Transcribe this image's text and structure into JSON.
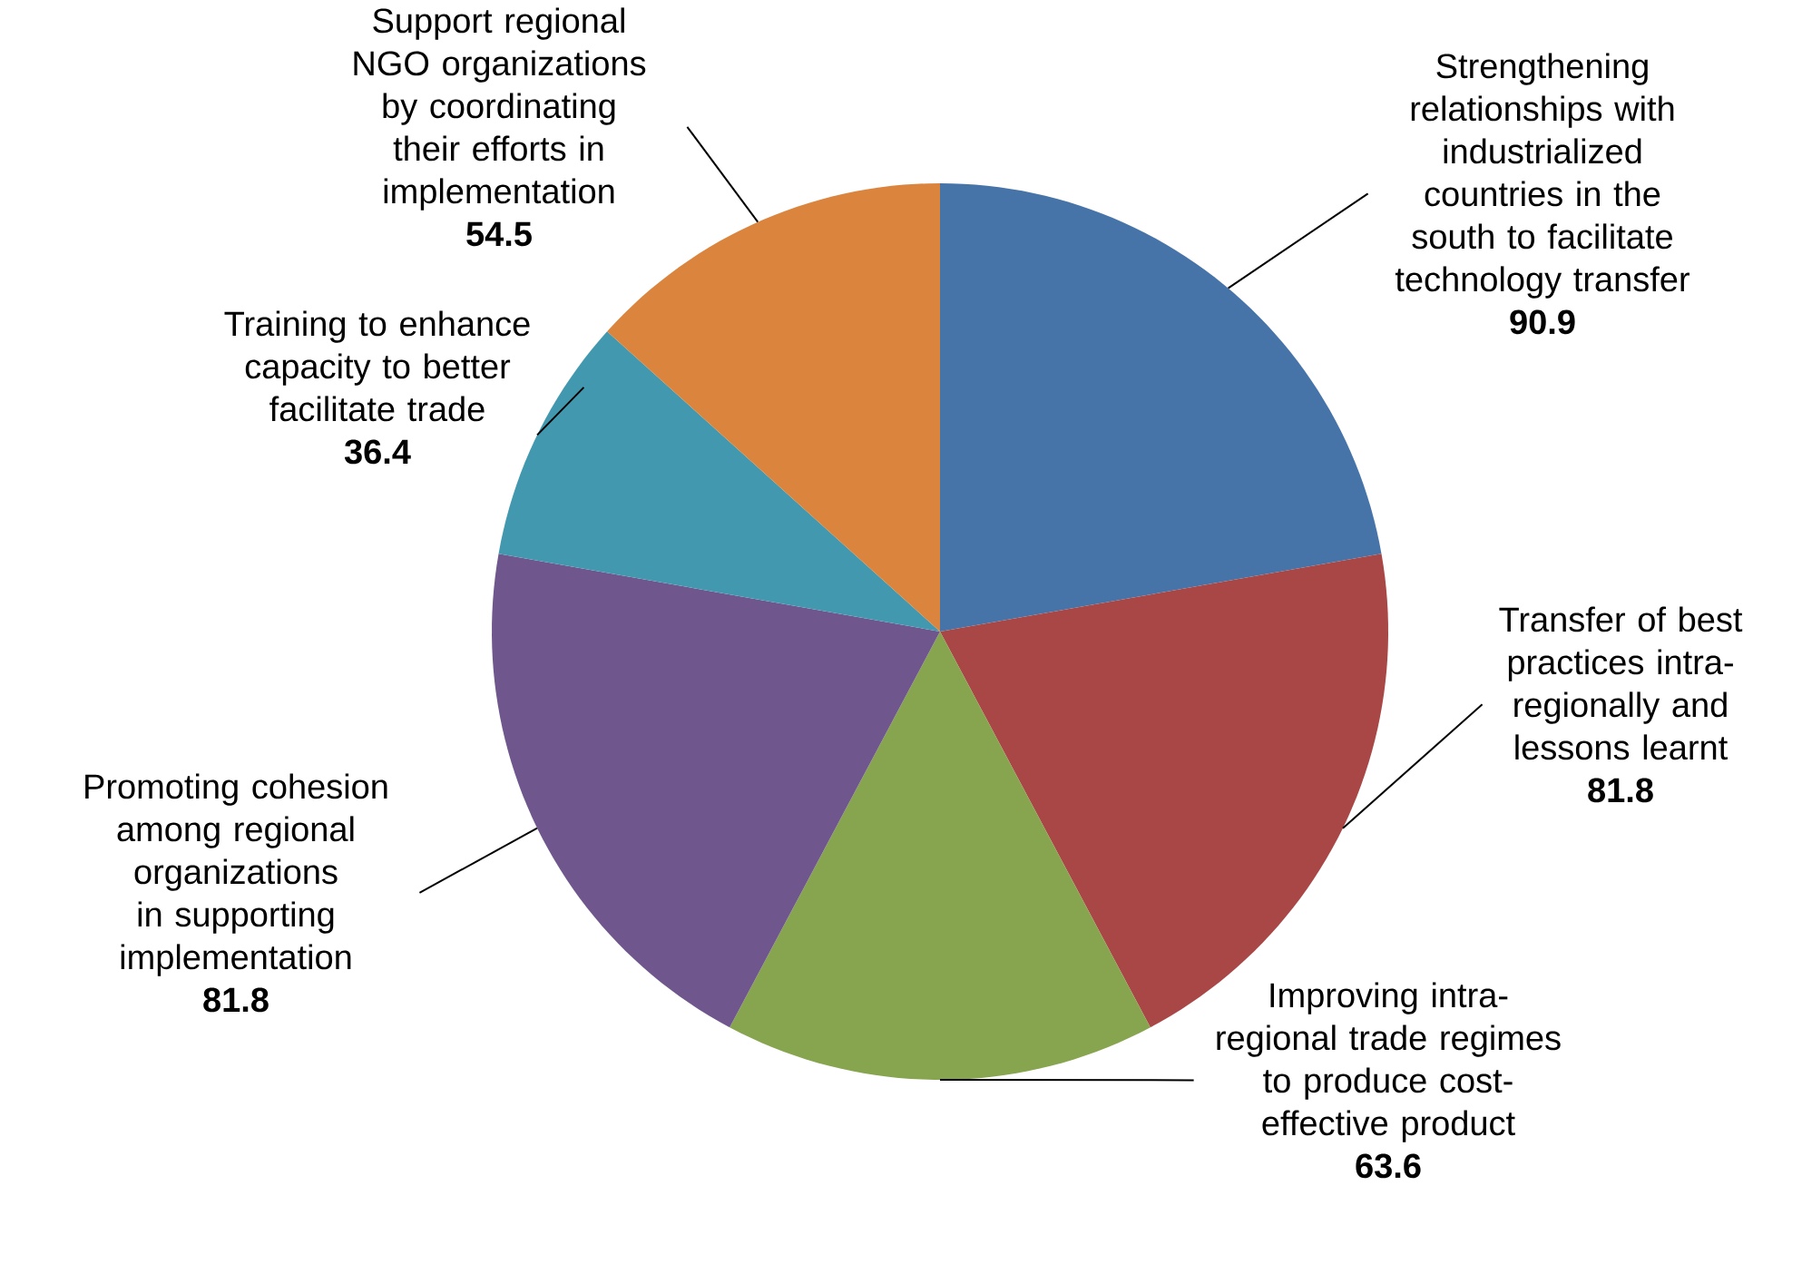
{
  "chart_data": {
    "type": "pie",
    "categories": [
      "Strengthening relationships with industrialized countries in the south to facilitate technology transfer",
      "Transfer of best practices intra-regionally and lessons learnt",
      "Improving intra-regional trade regimes to produce cost-effective product",
      "Promoting cohesion among regional organizations in supporting implementation",
      "Training to enhance capacity to better facilitate trade",
      "Support regional NGO organizations by coordinating their efforts in implementation"
    ],
    "values": [
      90.9,
      81.8,
      63.6,
      81.8,
      36.4,
      54.5
    ],
    "colors": [
      "#4674a8",
      "#a84745",
      "#87a44e",
      "#6f578e",
      "#4298ae",
      "#db843d"
    ],
    "data_labels": true
  }
}
